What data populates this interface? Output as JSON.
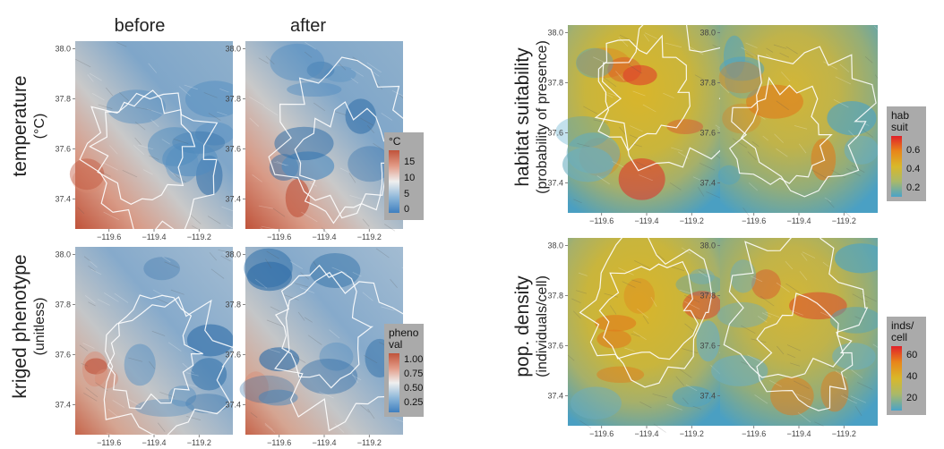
{
  "column_titles": [
    "before",
    "after"
  ],
  "row_labels": {
    "temperature": [
      "temperature",
      "(°C)"
    ],
    "phenotype": [
      "kriged phenotype",
      "(unitless)"
    ],
    "habitat": [
      "habitat suitability",
      "(probability of presence)"
    ],
    "density": [
      "pop. density",
      "(individuals/cell)"
    ]
  },
  "legends": {
    "temperature": {
      "title": [
        "°C"
      ],
      "labels": [
        "15",
        "10",
        "5",
        "0"
      ]
    },
    "phenotype": {
      "title": [
        "pheno",
        "val"
      ],
      "labels": [
        "1.00",
        "0.75",
        "0.50",
        "0.25"
      ]
    },
    "habitat": {
      "title": [
        "hab",
        "suit"
      ],
      "labels": [
        "0.6",
        "0.4",
        "0.2"
      ]
    },
    "density": {
      "title": [
        "inds/",
        "cell"
      ],
      "labels": [
        "60",
        "40",
        "20"
      ]
    }
  },
  "colors": {
    "temp_cold": "#3f7fbf",
    "temp_mid": "#e8e8e8",
    "temp_hot": "#c0533a",
    "suit_low": "#4aa3c8",
    "suit_mid": "#d9b82a",
    "suit_high": "#e0202a",
    "contour": "#ffffff",
    "legend_bg": "#aaaaaa"
  },
  "chart_data": [
    {
      "type": "heatmap",
      "panel": "temperature-before",
      "variable": "temperature",
      "unit": "°C",
      "legend_range": [
        0,
        18
      ],
      "x_ticks": [
        "−119.6",
        "−119.4",
        "−119.2"
      ],
      "y_ticks": [
        "38.0",
        "37.8",
        "37.6",
        "37.4"
      ],
      "x_range": [
        -119.75,
        -119.05
      ],
      "y_range": [
        37.28,
        38.03
      ]
    },
    {
      "type": "heatmap",
      "panel": "temperature-after",
      "variable": "temperature",
      "unit": "°C",
      "legend_range": [
        0,
        18
      ],
      "x_ticks": [
        "−119.6",
        "−119.4",
        "−119.2"
      ],
      "y_ticks": [
        "38.0",
        "37.8",
        "37.6",
        "37.4"
      ],
      "x_range": [
        -119.75,
        -119.05
      ],
      "y_range": [
        37.28,
        38.03
      ]
    },
    {
      "type": "heatmap",
      "panel": "phenotype-before",
      "variable": "kriged phenotype",
      "legend_range": [
        0.15,
        1.05
      ],
      "x_ticks": [
        "−119.6",
        "−119.4",
        "−119.2"
      ],
      "y_ticks": [
        "38.0",
        "37.8",
        "37.6",
        "37.4"
      ],
      "x_range": [
        -119.75,
        -119.05
      ],
      "y_range": [
        37.28,
        38.03
      ]
    },
    {
      "type": "heatmap",
      "panel": "phenotype-after",
      "variable": "kriged phenotype",
      "legend_range": [
        0.15,
        1.05
      ],
      "x_ticks": [
        "−119.6",
        "−119.4",
        "−119.2"
      ],
      "y_ticks": [
        "38.0",
        "37.8",
        "37.6",
        "37.4"
      ],
      "x_range": [
        -119.75,
        -119.05
      ],
      "y_range": [
        37.28,
        38.03
      ]
    },
    {
      "type": "heatmap",
      "panel": "habitat-before",
      "variable": "habitat suitability",
      "legend_range": [
        0.1,
        0.75
      ],
      "x_ticks": [
        "−119.6",
        "−119.4",
        "−119.2"
      ],
      "y_ticks": [
        "38.0",
        "37.8",
        "37.6",
        "37.4"
      ],
      "x_range": [
        -119.75,
        -119.05
      ],
      "y_range": [
        37.28,
        38.03
      ]
    },
    {
      "type": "heatmap",
      "panel": "habitat-after",
      "variable": "habitat suitability",
      "legend_range": [
        0.1,
        0.75
      ],
      "x_ticks": [
        "−119.6",
        "−119.4",
        "−119.2"
      ],
      "y_ticks": [
        "38.0",
        "37.8",
        "37.6",
        "37.4"
      ],
      "x_range": [
        -119.75,
        -119.05
      ],
      "y_range": [
        37.28,
        38.03
      ]
    },
    {
      "type": "heatmap",
      "panel": "density-before",
      "variable": "pop. density",
      "legend_range": [
        10,
        68
      ],
      "x_ticks": [
        "−119.6",
        "−119.4",
        "−119.2"
      ],
      "y_ticks": [
        "38.0",
        "37.8",
        "37.6",
        "37.4"
      ],
      "x_range": [
        -119.75,
        -119.05
      ],
      "y_range": [
        37.28,
        38.03
      ]
    },
    {
      "type": "heatmap",
      "panel": "density-after",
      "variable": "pop. density",
      "legend_range": [
        10,
        68
      ],
      "x_ticks": [
        "−119.6",
        "−119.4",
        "−119.2"
      ],
      "y_ticks": [
        "38.0",
        "37.8",
        "37.6",
        "37.4"
      ],
      "x_range": [
        -119.75,
        -119.05
      ],
      "y_range": [
        37.28,
        38.03
      ]
    }
  ]
}
